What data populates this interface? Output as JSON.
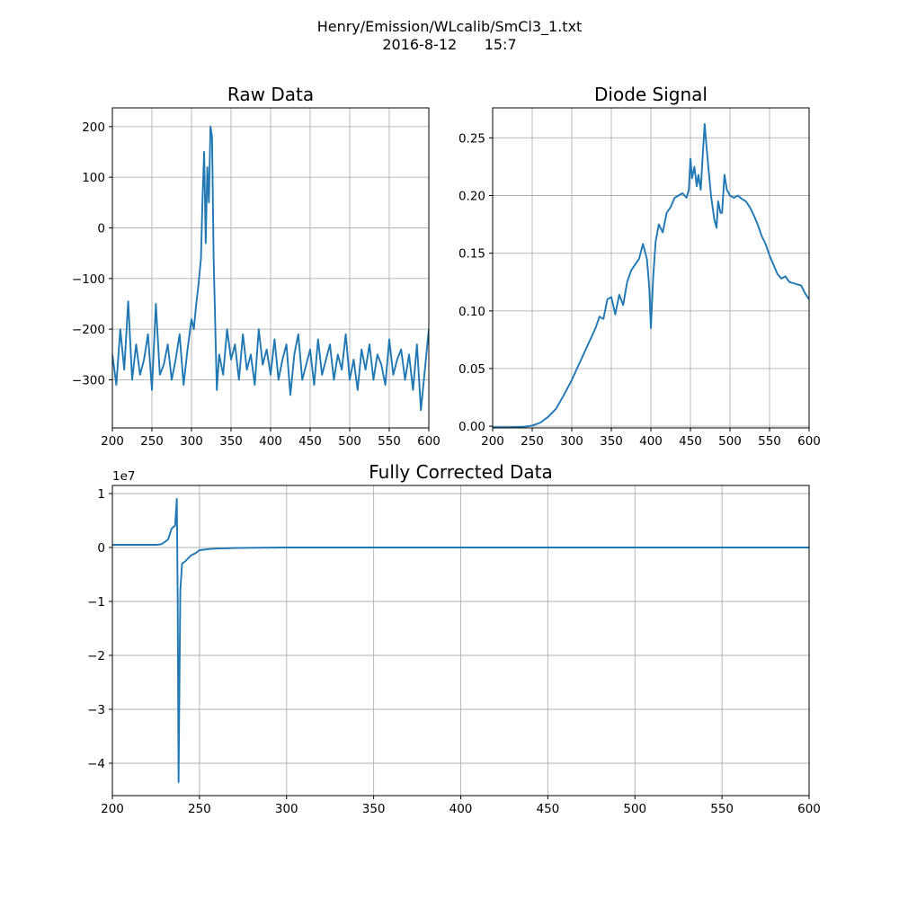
{
  "figure": {
    "suptitle_line1": "Henry/Emission/WLcalib/SmCl3_1.txt",
    "suptitle_line2": "2016-8-12      15:7"
  },
  "colors": {
    "series": "#1f77b4",
    "grid": "#b0b0b0",
    "axes": "#000000"
  },
  "chart_data": [
    {
      "type": "line",
      "title": "Raw Data",
      "xlabel": "",
      "ylabel": "",
      "xlim": [
        200,
        600
      ],
      "ylim": [
        -395,
        237
      ],
      "xticks": [
        200,
        250,
        300,
        350,
        400,
        450,
        500,
        550,
        600
      ],
      "xtick_labels": [
        "200",
        "250",
        "300",
        "350",
        "400",
        "450",
        "500",
        "550",
        "600"
      ],
      "yticks": [
        200,
        100,
        0,
        -100,
        -200,
        -300
      ],
      "ytick_labels": [
        "200",
        "100",
        "0",
        "−100",
        "−200",
        "−300"
      ],
      "grid": true,
      "series": [
        {
          "x": [
            200,
            205,
            210,
            215,
            220,
            225,
            230,
            235,
            240,
            245,
            250,
            255,
            260,
            265,
            270,
            275,
            280,
            285,
            290,
            295,
            300,
            303,
            306,
            309,
            312,
            314,
            316,
            318,
            320,
            322,
            324,
            326,
            328,
            330,
            332,
            335,
            340,
            345,
            350,
            355,
            360,
            365,
            370,
            375,
            380,
            385,
            390,
            395,
            400,
            405,
            410,
            415,
            420,
            425,
            430,
            435,
            440,
            445,
            450,
            455,
            460,
            465,
            470,
            475,
            480,
            485,
            490,
            495,
            500,
            505,
            510,
            515,
            520,
            525,
            530,
            535,
            540,
            545,
            550,
            555,
            560,
            565,
            570,
            575,
            580,
            585,
            590,
            595,
            600
          ],
          "y": [
            -250,
            -310,
            -200,
            -280,
            -145,
            -300,
            -230,
            -290,
            -260,
            -210,
            -320,
            -150,
            -290,
            -270,
            -230,
            -300,
            -260,
            -210,
            -310,
            -240,
            -180,
            -200,
            -150,
            -110,
            -60,
            60,
            150,
            -30,
            120,
            50,
            200,
            180,
            -60,
            -190,
            -320,
            -250,
            -290,
            -200,
            -260,
            -230,
            -300,
            -210,
            -280,
            -250,
            -310,
            -200,
            -270,
            -240,
            -290,
            -220,
            -300,
            -260,
            -230,
            -330,
            -250,
            -210,
            -300,
            -270,
            -240,
            -310,
            -220,
            -290,
            -260,
            -230,
            -300,
            -250,
            -280,
            -210,
            -300,
            -260,
            -320,
            -240,
            -280,
            -230,
            -300,
            -250,
            -270,
            -310,
            -220,
            -290,
            -260,
            -240,
            -300,
            -250,
            -320,
            -230,
            -360,
            -280,
            -200
          ]
        }
      ]
    },
    {
      "type": "line",
      "title": "Diode Signal",
      "xlabel": "",
      "ylabel": "",
      "xlim": [
        200,
        600
      ],
      "ylim": [
        -0.0015,
        0.276
      ],
      "xticks": [
        200,
        250,
        300,
        350,
        400,
        450,
        500,
        550,
        600
      ],
      "xtick_labels": [
        "200",
        "250",
        "300",
        "350",
        "400",
        "450",
        "500",
        "550",
        "600"
      ],
      "yticks": [
        0.25,
        0.2,
        0.15,
        0.1,
        0.05,
        0.0
      ],
      "ytick_labels": [
        "0.25",
        "0.20",
        "0.15",
        "0.10",
        "0.05",
        "0.00"
      ],
      "grid": true,
      "series": [
        {
          "x": [
            200,
            220,
            240,
            250,
            260,
            270,
            280,
            290,
            300,
            310,
            320,
            330,
            335,
            340,
            345,
            350,
            355,
            360,
            365,
            370,
            375,
            380,
            385,
            390,
            395,
            398,
            400,
            403,
            406,
            410,
            415,
            420,
            425,
            430,
            435,
            440,
            445,
            448,
            450,
            452,
            455,
            458,
            460,
            463,
            466,
            468,
            470,
            473,
            476,
            480,
            483,
            485,
            488,
            490,
            493,
            496,
            500,
            505,
            510,
            515,
            520,
            525,
            530,
            535,
            540,
            545,
            550,
            555,
            560,
            565,
            570,
            575,
            580,
            585,
            590,
            595,
            600
          ],
          "y": [
            -0.001,
            -0.001,
            -0.0005,
            0.0005,
            0.003,
            0.008,
            0.015,
            0.027,
            0.04,
            0.055,
            0.07,
            0.085,
            0.095,
            0.093,
            0.11,
            0.112,
            0.097,
            0.114,
            0.105,
            0.125,
            0.135,
            0.14,
            0.145,
            0.158,
            0.145,
            0.12,
            0.085,
            0.13,
            0.16,
            0.175,
            0.168,
            0.185,
            0.19,
            0.198,
            0.2,
            0.202,
            0.198,
            0.205,
            0.232,
            0.215,
            0.225,
            0.208,
            0.218,
            0.205,
            0.24,
            0.262,
            0.245,
            0.222,
            0.2,
            0.18,
            0.172,
            0.195,
            0.185,
            0.185,
            0.218,
            0.205,
            0.2,
            0.198,
            0.2,
            0.197,
            0.195,
            0.19,
            0.183,
            0.175,
            0.165,
            0.158,
            0.148,
            0.14,
            0.132,
            0.128,
            0.13,
            0.125,
            0.124,
            0.123,
            0.122,
            0.115,
            0.11
          ]
        }
      ]
    },
    {
      "type": "line",
      "title": "Fully Corrected Data",
      "xlabel": "",
      "ylabel": "",
      "xlim": [
        200,
        600
      ],
      "ylim": [
        -4.6,
        1.15
      ],
      "y_multiplier_label": "1e7",
      "xticks": [
        200,
        250,
        300,
        350,
        400,
        450,
        500,
        550,
        600
      ],
      "xtick_labels": [
        "200",
        "250",
        "300",
        "350",
        "400",
        "450",
        "500",
        "550",
        "600"
      ],
      "yticks": [
        1,
        0,
        -1,
        -2,
        -3,
        -4
      ],
      "ytick_labels": [
        "1",
        "0",
        "−1",
        "−2",
        "−3",
        "−4"
      ],
      "grid": true,
      "series": [
        {
          "x": [
            200,
            205,
            210,
            215,
            220,
            225,
            228,
            230,
            232,
            234,
            235,
            236,
            237,
            237.5,
            238,
            239,
            240,
            242,
            245,
            248,
            250,
            255,
            260,
            270,
            280,
            300,
            350,
            400,
            450,
            500,
            550,
            600
          ],
          "y": [
            0.05,
            0.05,
            0.05,
            0.05,
            0.05,
            0.05,
            0.06,
            0.1,
            0.15,
            0.35,
            0.38,
            0.4,
            0.9,
            -1.0,
            -4.35,
            -0.8,
            -0.3,
            -0.25,
            -0.15,
            -0.1,
            -0.05,
            -0.03,
            -0.02,
            -0.01,
            -0.005,
            0.0,
            0.0,
            0.0,
            0.0,
            0.0,
            0.0,
            0.0
          ]
        }
      ]
    }
  ]
}
